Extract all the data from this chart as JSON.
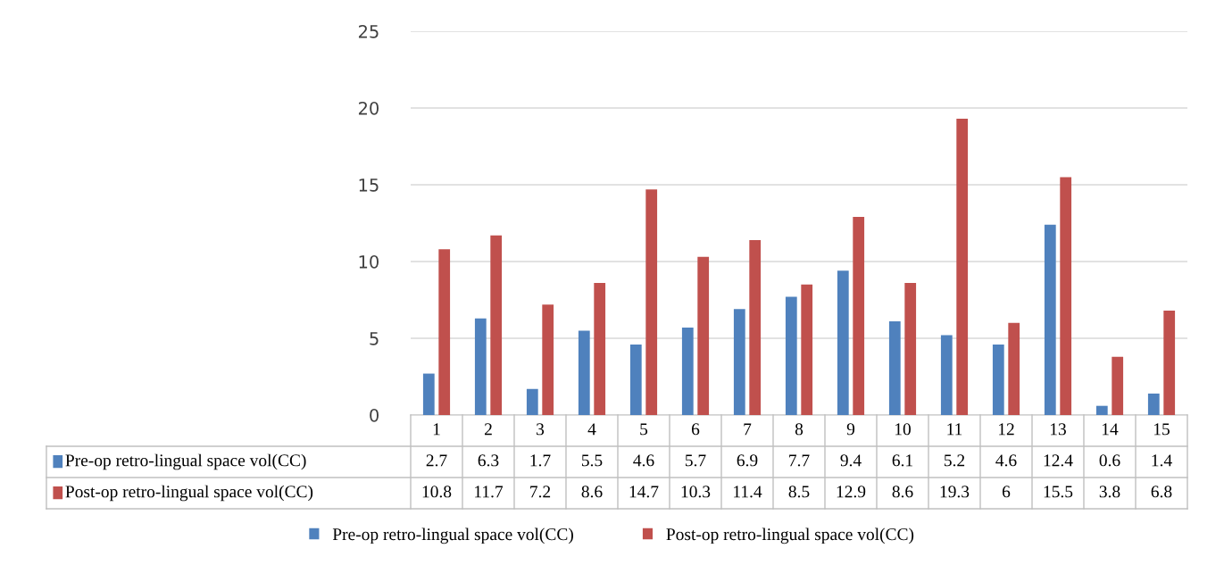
{
  "chart_data": {
    "type": "bar",
    "categories": [
      "1",
      "2",
      "3",
      "4",
      "5",
      "6",
      "7",
      "8",
      "9",
      "10",
      "11",
      "12",
      "13",
      "14",
      "15"
    ],
    "series": [
      {
        "name": "Pre-op retro-lingual space vol(CC)",
        "color": "#4f81bd",
        "values": [
          2.7,
          6.3,
          1.7,
          5.5,
          4.6,
          5.7,
          6.9,
          7.7,
          9.4,
          6.1,
          5.2,
          4.6,
          12.4,
          0.6,
          1.4
        ]
      },
      {
        "name": "Post-op retro-lingual space vol(CC)",
        "color": "#c0504d",
        "values": [
          10.8,
          11.7,
          7.2,
          8.6,
          14.7,
          10.3,
          11.4,
          8.5,
          12.9,
          8.6,
          19.3,
          6,
          15.5,
          3.8,
          6.8
        ]
      }
    ],
    "ylim": [
      0,
      25
    ],
    "yticks": [
      0,
      5,
      10,
      15,
      20,
      25
    ],
    "grid": "y",
    "legend": "bottom",
    "data_labels": true
  }
}
